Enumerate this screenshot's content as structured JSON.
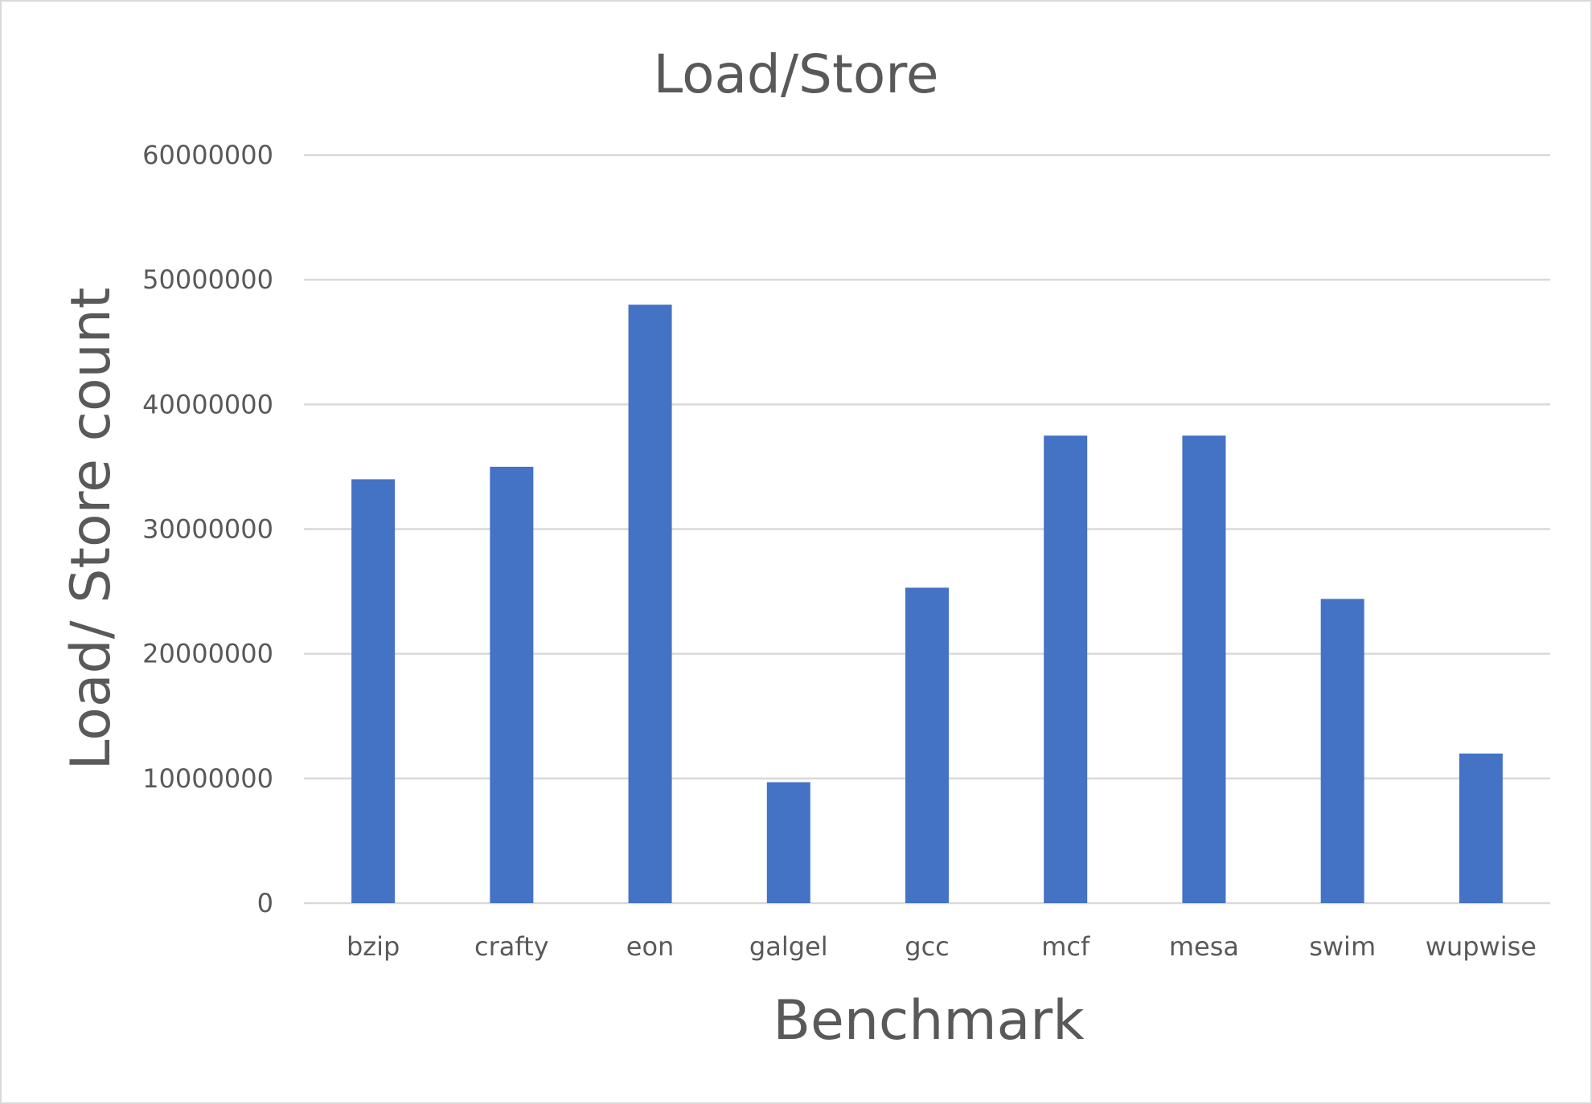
{
  "chart_data": {
    "type": "bar",
    "title": "Load/Store",
    "xlabel": "Benchmark",
    "ylabel": "Load/ Store count",
    "categories": [
      "bzip",
      "crafty",
      "eon",
      "galgel",
      "gcc",
      "mcf",
      "mesa",
      "swim",
      "wupwise"
    ],
    "series": [
      {
        "values": [
          34000000,
          35000000,
          48000000,
          9700000,
          25300000,
          37500000,
          37500000,
          24400000,
          12000000
        ]
      }
    ],
    "ylim": [
      0,
      60000000
    ],
    "yticks": [
      0,
      10000000,
      20000000,
      30000000,
      40000000,
      50000000,
      60000000
    ],
    "ytick_labels": [
      "0",
      "10000000",
      "20000000",
      "30000000",
      "40000000",
      "50000000",
      "60000000"
    ],
    "grid": true,
    "legend": "none",
    "bar_color": "#4472C4"
  }
}
